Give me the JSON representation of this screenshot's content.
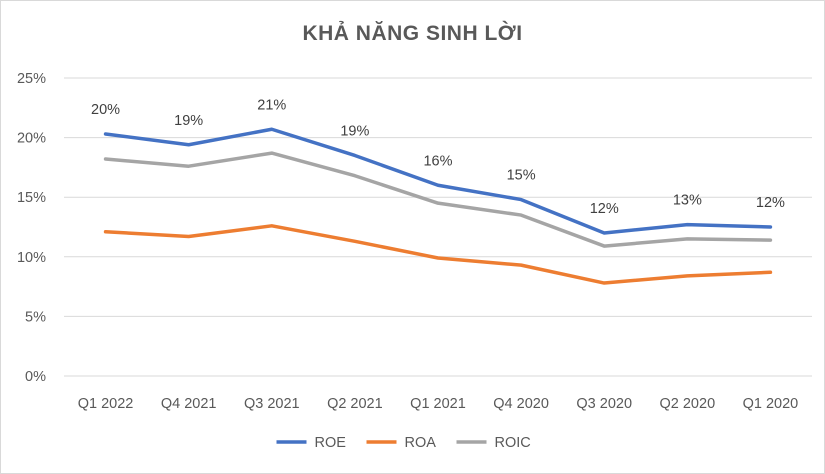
{
  "chart_data": {
    "type": "line",
    "title": "KHẢ NĂNG SINH LỜI",
    "categories": [
      "Q1 2022",
      "Q4 2021",
      "Q3 2021",
      "Q2 2021",
      "Q1 2021",
      "Q4 2020",
      "Q3 2020",
      "Q2 2020",
      "Q1 2020"
    ],
    "series": [
      {
        "name": "ROE",
        "color": "#4472c4",
        "values": [
          20.3,
          19.4,
          20.7,
          18.5,
          16.0,
          14.8,
          12.0,
          12.7,
          12.5
        ],
        "labels": [
          "20%",
          "19%",
          "21%",
          "19%",
          "16%",
          "15%",
          "12%",
          "13%",
          "12%"
        ]
      },
      {
        "name": "ROA",
        "color": "#ed7d31",
        "values": [
          12.1,
          11.7,
          12.6,
          11.3,
          9.9,
          9.3,
          7.8,
          8.4,
          8.7
        ]
      },
      {
        "name": "ROIC",
        "color": "#a5a5a5",
        "values": [
          18.2,
          17.6,
          18.7,
          16.8,
          14.5,
          13.5,
          10.9,
          11.5,
          11.4
        ]
      }
    ],
    "ylim": [
      0,
      25
    ],
    "yticks": [
      "0%",
      "5%",
      "10%",
      "15%",
      "20%",
      "25%"
    ],
    "grid": true,
    "legend": "bottom"
  }
}
